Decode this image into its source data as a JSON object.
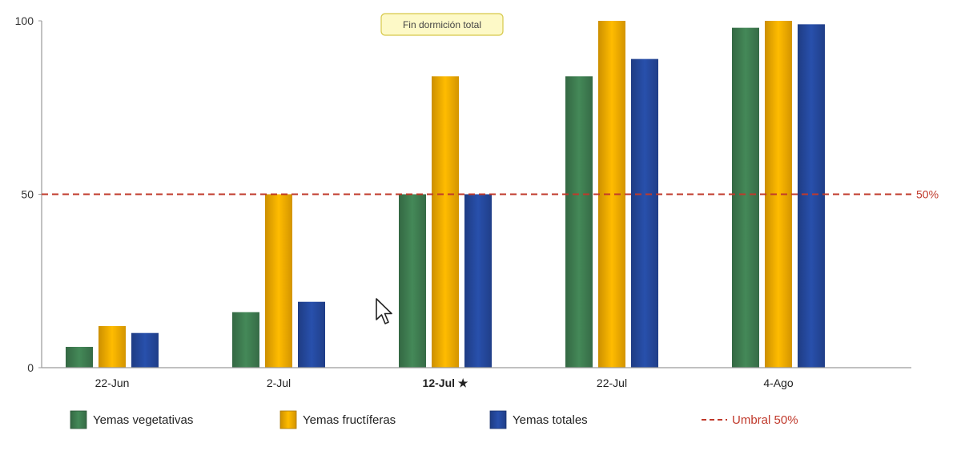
{
  "chart_data": {
    "type": "bar",
    "categories": [
      "22-Jun",
      "2-Jul",
      "12-Jul ★",
      "22-Jul",
      "4-Ago"
    ],
    "highlight_category": "12-Jul ★",
    "series": [
      {
        "name": "Yemas vegetativas",
        "values": [
          6,
          16,
          50,
          84,
          98
        ],
        "color": "#3d7a4f"
      },
      {
        "name": "Yemas fructíferas",
        "values": [
          12,
          50,
          84,
          100,
          100
        ],
        "color": "#f0a800"
      },
      {
        "name": "Yemas totales",
        "values": [
          10,
          19,
          50,
          89,
          99
        ],
        "color": "#24479a"
      }
    ],
    "y_ticks": [
      "0",
      "50",
      "100"
    ],
    "ylim": [
      0,
      100
    ],
    "threshold": {
      "value": 50,
      "label": "50%",
      "legend": "Umbral 50%",
      "color": "#c0392b"
    },
    "annotation": "Fin dormición total",
    "legend_position": "bottom"
  }
}
